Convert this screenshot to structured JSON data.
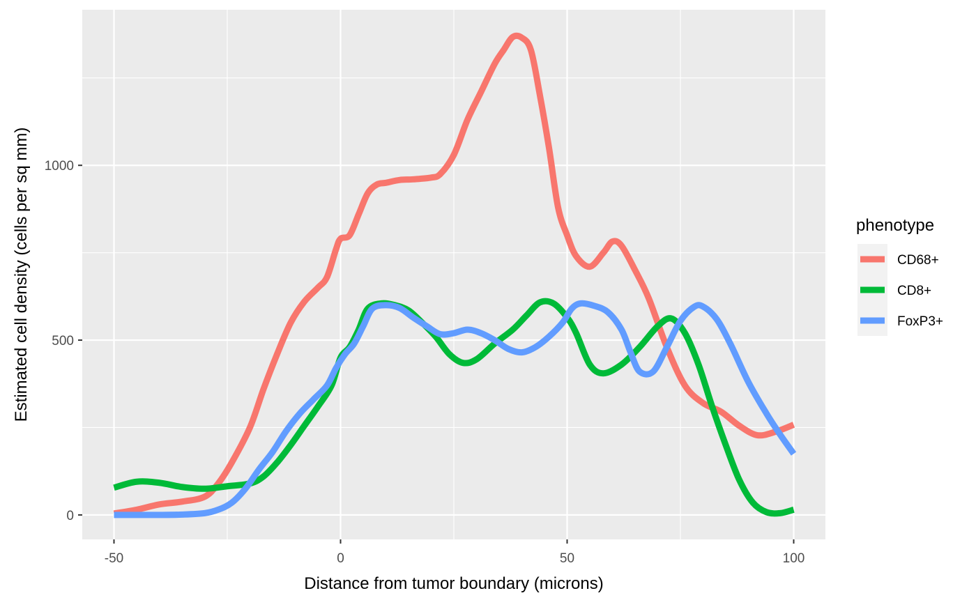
{
  "chart_data": {
    "type": "line",
    "xlabel": "Distance from tumor boundary (microns)",
    "ylabel": "Estimated cell density (cells per sq mm)",
    "xlim": [
      -57,
      107
    ],
    "ylim": [
      -70,
      1445
    ],
    "x_ticks": [
      -50,
      0,
      50,
      100
    ],
    "x_tick_labels": [
      "-50",
      "0",
      "50",
      "100"
    ],
    "y_ticks": [
      0,
      500,
      1000
    ],
    "y_tick_labels": [
      "0",
      "500",
      "1000"
    ],
    "grid": true,
    "background": "#ebebeb",
    "legend": {
      "title": "phenotype",
      "position": "right"
    },
    "series": [
      {
        "name": "CD68+",
        "color": "#f8766d",
        "points": [
          [
            -50,
            4
          ],
          [
            -45,
            15
          ],
          [
            -40,
            30
          ],
          [
            -35,
            38
          ],
          [
            -30,
            52
          ],
          [
            -27,
            90
          ],
          [
            -24,
            150
          ],
          [
            -20,
            250
          ],
          [
            -17,
            360
          ],
          [
            -14,
            460
          ],
          [
            -11,
            550
          ],
          [
            -8,
            610
          ],
          [
            -5,
            650
          ],
          [
            -3,
            680
          ],
          [
            -1,
            760
          ],
          [
            0,
            790
          ],
          [
            2,
            800
          ],
          [
            4,
            860
          ],
          [
            6,
            920
          ],
          [
            8,
            945
          ],
          [
            10,
            950
          ],
          [
            13,
            958
          ],
          [
            16,
            960
          ],
          [
            20,
            965
          ],
          [
            22,
            975
          ],
          [
            25,
            1030
          ],
          [
            28,
            1130
          ],
          [
            31,
            1210
          ],
          [
            34,
            1290
          ],
          [
            36,
            1330
          ],
          [
            38,
            1367
          ],
          [
            40,
            1365
          ],
          [
            42,
            1330
          ],
          [
            44,
            1200
          ],
          [
            46,
            1050
          ],
          [
            48,
            880
          ],
          [
            50,
            800
          ],
          [
            52,
            740
          ],
          [
            55,
            710
          ],
          [
            58,
            750
          ],
          [
            60,
            782
          ],
          [
            62,
            770
          ],
          [
            65,
            700
          ],
          [
            68,
            620
          ],
          [
            72,
            480
          ],
          [
            76,
            370
          ],
          [
            80,
            320
          ],
          [
            84,
            295
          ],
          [
            88,
            255
          ],
          [
            92,
            228
          ],
          [
            96,
            238
          ],
          [
            100,
            258
          ]
        ]
      },
      {
        "name": "CD8+",
        "color": "#00ba38",
        "points": [
          [
            -50,
            78
          ],
          [
            -45,
            95
          ],
          [
            -40,
            92
          ],
          [
            -35,
            80
          ],
          [
            -30,
            75
          ],
          [
            -25,
            82
          ],
          [
            -20,
            90
          ],
          [
            -17,
            110
          ],
          [
            -14,
            150
          ],
          [
            -11,
            200
          ],
          [
            -8,
            255
          ],
          [
            -5,
            310
          ],
          [
            -2,
            370
          ],
          [
            0,
            450
          ],
          [
            2,
            480
          ],
          [
            4,
            530
          ],
          [
            6,
            590
          ],
          [
            9,
            605
          ],
          [
            12,
            600
          ],
          [
            15,
            585
          ],
          [
            18,
            550
          ],
          [
            21,
            510
          ],
          [
            24,
            460
          ],
          [
            27,
            435
          ],
          [
            30,
            445
          ],
          [
            34,
            490
          ],
          [
            38,
            530
          ],
          [
            41,
            570
          ],
          [
            44,
            608
          ],
          [
            47,
            605
          ],
          [
            50,
            565
          ],
          [
            52,
            520
          ],
          [
            55,
            430
          ],
          [
            58,
            405
          ],
          [
            62,
            430
          ],
          [
            66,
            480
          ],
          [
            70,
            540
          ],
          [
            73,
            562
          ],
          [
            76,
            520
          ],
          [
            79,
            430
          ],
          [
            82,
            310
          ],
          [
            85,
            200
          ],
          [
            88,
            100
          ],
          [
            91,
            35
          ],
          [
            94,
            8
          ],
          [
            97,
            5
          ],
          [
            100,
            15
          ]
        ]
      },
      {
        "name": "FoxP3+",
        "color": "#619cff",
        "points": [
          [
            -50,
            0
          ],
          [
            -45,
            0
          ],
          [
            -40,
            0
          ],
          [
            -35,
            1
          ],
          [
            -30,
            5
          ],
          [
            -27,
            15
          ],
          [
            -24,
            35
          ],
          [
            -21,
            75
          ],
          [
            -18,
            130
          ],
          [
            -15,
            180
          ],
          [
            -12,
            240
          ],
          [
            -9,
            290
          ],
          [
            -6,
            330
          ],
          [
            -3,
            370
          ],
          [
            -1,
            420
          ],
          [
            1,
            460
          ],
          [
            3,
            490
          ],
          [
            5,
            540
          ],
          [
            7,
            590
          ],
          [
            10,
            600
          ],
          [
            13,
            592
          ],
          [
            16,
            565
          ],
          [
            19,
            540
          ],
          [
            22,
            517
          ],
          [
            25,
            520
          ],
          [
            28,
            530
          ],
          [
            31,
            520
          ],
          [
            34,
            500
          ],
          [
            37,
            475
          ],
          [
            40,
            465
          ],
          [
            43,
            480
          ],
          [
            46,
            510
          ],
          [
            49,
            550
          ],
          [
            51,
            590
          ],
          [
            53,
            605
          ],
          [
            56,
            598
          ],
          [
            59,
            580
          ],
          [
            62,
            530
          ],
          [
            64,
            465
          ],
          [
            66,
            410
          ],
          [
            69,
            410
          ],
          [
            72,
            480
          ],
          [
            75,
            555
          ],
          [
            78,
            595
          ],
          [
            80,
            596
          ],
          [
            83,
            560
          ],
          [
            86,
            490
          ],
          [
            90,
            380
          ],
          [
            94,
            290
          ],
          [
            97,
            230
          ],
          [
            100,
            175
          ]
        ]
      }
    ]
  }
}
